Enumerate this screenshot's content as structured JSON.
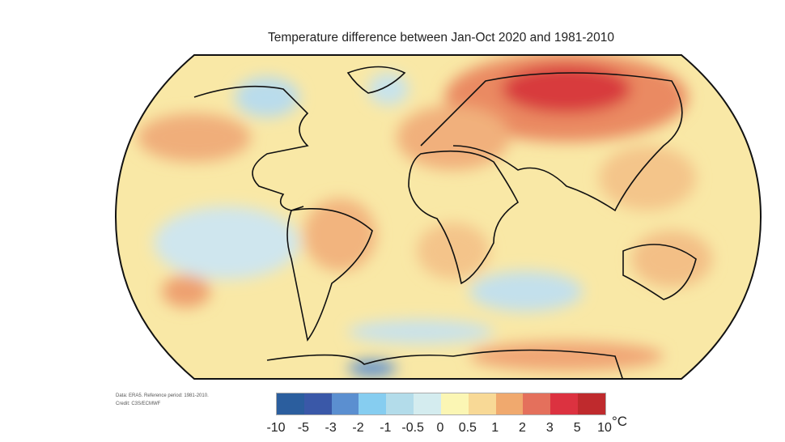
{
  "title": "Temperature difference between Jan-Oct 2020 and 1981-2010",
  "credit": {
    "line1": "Data: ERA5. Reference period: 1981-2010.",
    "line2": "Credit: C3S/ECMWF"
  },
  "colorbar": {
    "unit": "°C",
    "ticks": [
      "-10",
      "-5",
      "-3",
      "-2",
      "-1",
      "-0.5",
      "0",
      "0.5",
      "1",
      "2",
      "3",
      "5",
      "10"
    ],
    "colors": [
      "#2b5e9e",
      "#3a58a8",
      "#5b8fd0",
      "#86cdf0",
      "#b3dcea",
      "#d4ecef",
      "#fbf6b4",
      "#f8d996",
      "#f0a96e",
      "#e4705c",
      "#dc3240",
      "#bf2a2d"
    ]
  },
  "map": {
    "projection": "Robinson",
    "ocean_base": "#f8e6a8",
    "land_outline": "#111111"
  }
}
